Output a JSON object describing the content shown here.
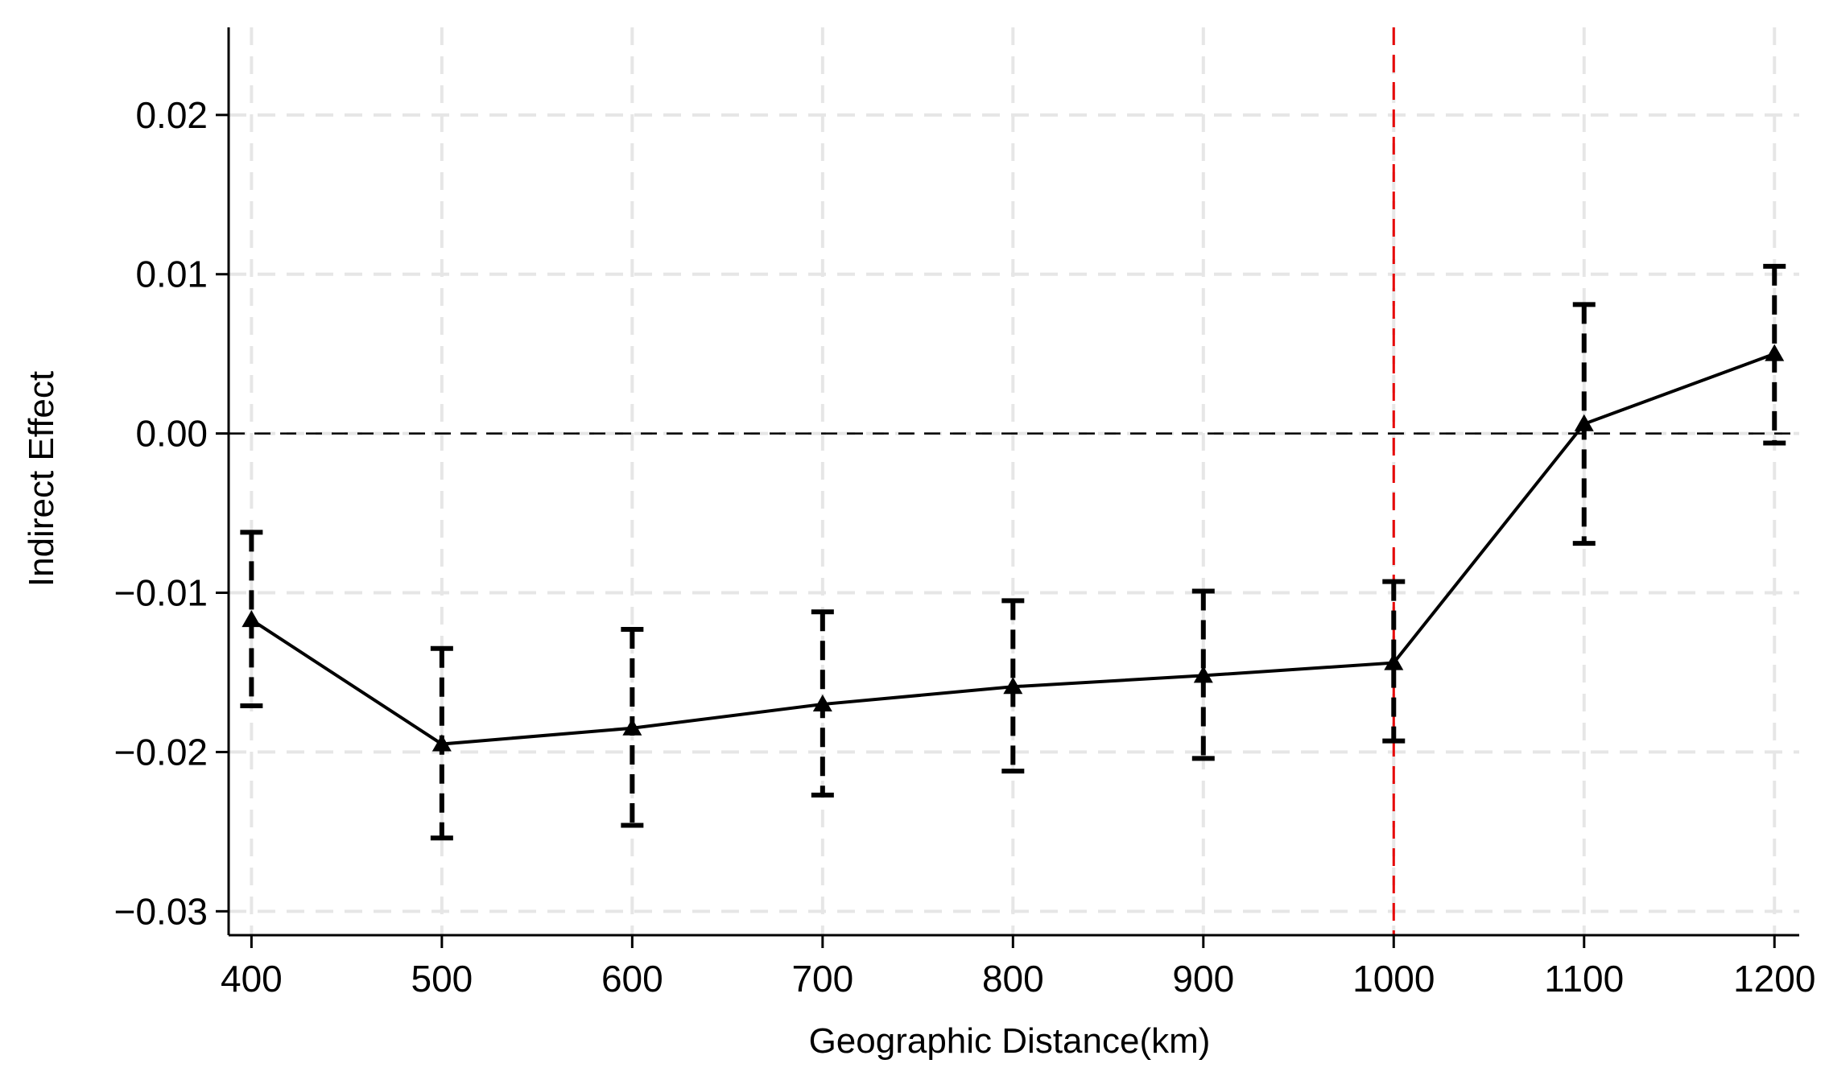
{
  "chart_data": {
    "type": "line",
    "xlabel": "Geographic Distance(km)",
    "ylabel": "Indirect Effect",
    "xlim": [
      388,
      1213
    ],
    "ylim": [
      -0.0315,
      0.0255
    ],
    "x_ticks": [
      400,
      500,
      600,
      700,
      800,
      900,
      1000,
      1100,
      1200
    ],
    "x_tick_labels": [
      "400",
      "500",
      "600",
      "700",
      "800",
      "900",
      "1000",
      "1100",
      "1200"
    ],
    "y_ticks": [
      -0.03,
      -0.02,
      -0.01,
      0.0,
      0.01,
      0.02
    ],
    "y_tick_labels": [
      "−0.03",
      "−0.02",
      "−0.01",
      "0.00",
      "0.01",
      "0.02"
    ],
    "grid": true,
    "reference_lines": {
      "horizontal_y": 0.0,
      "horizontal_color": "#000000",
      "vertical_x": 1000,
      "vertical_color": "#e60000"
    },
    "series": [
      {
        "x": [
          400,
          500,
          600,
          700,
          800,
          900,
          1000,
          1100,
          1200
        ],
        "y": [
          -0.0117,
          -0.0195,
          -0.0185,
          -0.017,
          -0.0159,
          -0.0152,
          -0.0144,
          0.0006,
          0.005
        ],
        "ci_lower": [
          -0.0171,
          -0.0254,
          -0.0246,
          -0.0227,
          -0.0212,
          -0.0204,
          -0.0193,
          -0.0069,
          -0.0006
        ],
        "ci_upper": [
          -0.0062,
          -0.0135,
          -0.0123,
          -0.0112,
          -0.0105,
          -0.0099,
          -0.0093,
          0.0081,
          0.0105
        ],
        "marker": "triangle",
        "color": "#000000"
      }
    ]
  }
}
